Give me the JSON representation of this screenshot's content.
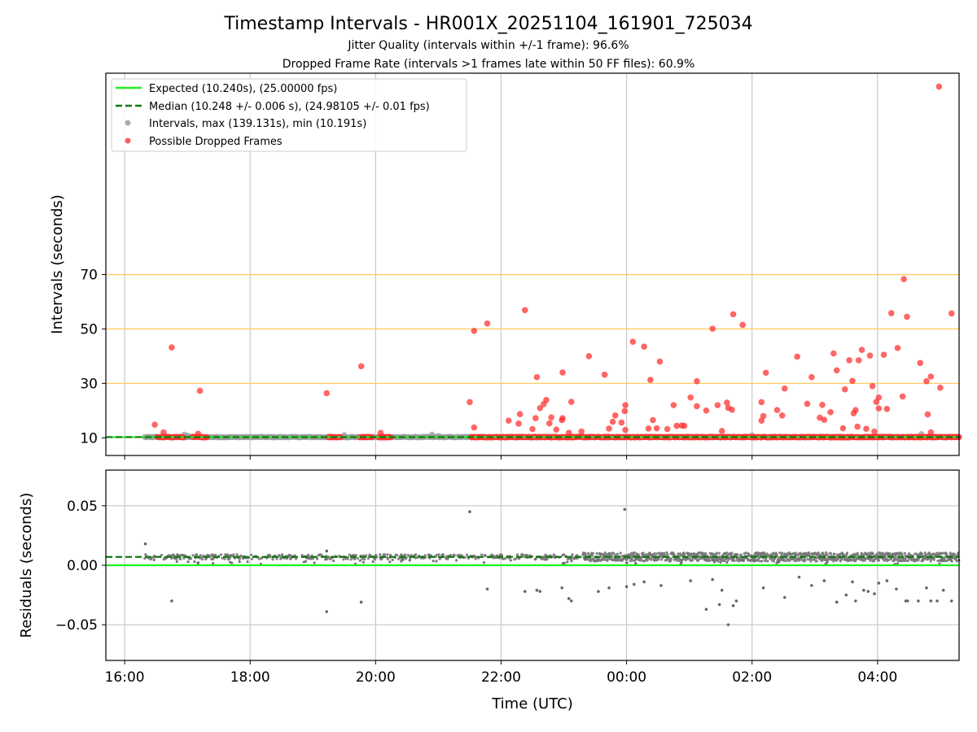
{
  "chart_data": [
    {
      "type": "scatter",
      "panel": "intervals",
      "title": "Timestamp Intervals - HR001X_20251104_161901_725034",
      "subtitle_lines": [
        "Jitter Quality (intervals within +/-1 frame): 96.6%",
        "Dropped Frame Rate (intervals >1 frames late within 50 FF files): 60.9%"
      ],
      "xlabel": "",
      "ylabel": "Intervals (seconds)",
      "xlim": [
        15.7,
        29.3
      ],
      "ylim": [
        3.5,
        144.0
      ],
      "yticks": [
        10,
        30,
        50,
        70
      ],
      "ytick_labels": [
        "10",
        "30",
        "50",
        "70"
      ],
      "hlines": [
        30,
        50,
        70
      ],
      "expected_interval": 10.24,
      "median_interval": 10.248,
      "legend": [
        {
          "label": "Expected (10.240s), (25.00000 fps)",
          "style": "line",
          "color": "#22ee22"
        },
        {
          "label": "Median (10.248 +/- 0.006 s), (24.98105 +/- 0.01 fps)",
          "style": "dashed",
          "color": "#117711"
        },
        {
          "label": "Intervals, max (139.131s), min (10.191s)",
          "style": "dot",
          "color": "#999999"
        },
        {
          "label": "Possible Dropped Frames",
          "style": "dot",
          "color": "#ff3333"
        }
      ],
      "legend_position": "top-left",
      "series": [
        {
          "name": "Possible Dropped Frames",
          "color": "#ff3333",
          "points": [
            [
              16.48,
              14.8
            ],
            [
              16.62,
              12.0
            ],
            [
              16.75,
              43.2
            ],
            [
              17.17,
              11.5
            ],
            [
              17.2,
              27.3
            ],
            [
              19.22,
              26.4
            ],
            [
              19.77,
              36.3
            ],
            [
              20.08,
              11.8
            ],
            [
              21.5,
              23.1
            ],
            [
              21.57,
              13.8
            ],
            [
              21.57,
              49.3
            ],
            [
              21.78,
              52.0
            ],
            [
              22.12,
              16.3
            ],
            [
              22.28,
              15.2
            ],
            [
              22.3,
              18.7
            ],
            [
              22.38,
              56.9
            ],
            [
              22.5,
              13.2
            ],
            [
              22.55,
              17.2
            ],
            [
              22.57,
              32.3
            ],
            [
              22.62,
              20.9
            ],
            [
              22.68,
              22.4
            ],
            [
              22.72,
              23.9
            ],
            [
              22.77,
              15.3
            ],
            [
              22.8,
              17.5
            ],
            [
              22.88,
              13.0
            ],
            [
              22.97,
              16.5
            ],
            [
              22.98,
              17.2
            ],
            [
              22.98,
              34.0
            ],
            [
              23.08,
              11.8
            ],
            [
              23.12,
              23.2
            ],
            [
              23.28,
              12.3
            ],
            [
              23.4,
              40.0
            ],
            [
              23.65,
              33.2
            ],
            [
              23.72,
              13.4
            ],
            [
              23.78,
              15.9
            ],
            [
              23.82,
              18.2
            ],
            [
              23.92,
              15.6
            ],
            [
              23.97,
              19.8
            ],
            [
              23.98,
              22.0
            ],
            [
              23.98,
              12.9
            ],
            [
              24.1,
              45.3
            ],
            [
              24.28,
              43.5
            ],
            [
              24.35,
              13.4
            ],
            [
              24.38,
              31.3
            ],
            [
              24.42,
              16.5
            ],
            [
              24.48,
              13.5
            ],
            [
              24.53,
              38.0
            ],
            [
              24.65,
              13.2
            ],
            [
              24.75,
              22.0
            ],
            [
              24.8,
              14.4
            ],
            [
              24.88,
              14.5
            ],
            [
              24.92,
              14.4
            ],
            [
              25.02,
              24.8
            ],
            [
              25.12,
              21.6
            ],
            [
              25.12,
              30.8
            ],
            [
              25.27,
              20.0
            ],
            [
              25.37,
              50.1
            ],
            [
              25.45,
              22.0
            ],
            [
              25.52,
              12.5
            ],
            [
              25.6,
              22.9
            ],
            [
              25.62,
              21.0
            ],
            [
              25.68,
              20.3
            ],
            [
              25.7,
              55.4
            ],
            [
              25.85,
              51.5
            ],
            [
              26.15,
              23.1
            ],
            [
              26.15,
              16.3
            ],
            [
              26.18,
              18.0
            ],
            [
              26.22,
              33.9
            ],
            [
              26.4,
              20.2
            ],
            [
              26.48,
              18.2
            ],
            [
              26.52,
              28.1
            ],
            [
              26.72,
              39.8
            ],
            [
              26.88,
              22.5
            ],
            [
              26.95,
              32.3
            ],
            [
              27.08,
              17.4
            ],
            [
              27.12,
              22.1
            ],
            [
              27.15,
              16.6
            ],
            [
              27.25,
              19.4
            ],
            [
              27.3,
              41.0
            ],
            [
              27.35,
              34.8
            ],
            [
              27.45,
              13.5
            ],
            [
              27.48,
              27.8
            ],
            [
              27.55,
              38.5
            ],
            [
              27.6,
              30.9
            ],
            [
              27.62,
              19.0
            ],
            [
              27.65,
              20.2
            ],
            [
              27.68,
              14.1
            ],
            [
              27.7,
              38.5
            ],
            [
              27.75,
              42.3
            ],
            [
              27.82,
              13.3
            ],
            [
              27.88,
              40.2
            ],
            [
              27.92,
              29.0
            ],
            [
              27.95,
              12.3
            ],
            [
              27.98,
              23.2
            ],
            [
              28.02,
              20.8
            ],
            [
              28.02,
              24.8
            ],
            [
              28.1,
              40.5
            ],
            [
              28.15,
              20.6
            ],
            [
              28.22,
              55.8
            ],
            [
              28.32,
              43.0
            ],
            [
              28.4,
              25.2
            ],
            [
              28.42,
              68.3
            ],
            [
              28.47,
              54.5
            ],
            [
              28.68,
              37.5
            ],
            [
              28.78,
              30.8
            ],
            [
              28.8,
              18.6
            ],
            [
              28.85,
              32.5
            ],
            [
              28.85,
              12.0
            ],
            [
              29.0,
              28.4
            ],
            [
              28.98,
              139.1
            ],
            [
              29.18,
              55.7
            ]
          ]
        }
      ],
      "dense_bands": [
        {
          "color": "#999999",
          "name": "Intervals",
          "x_start": 16.32,
          "x_end": 29.3,
          "y": 10.24
        },
        {
          "color": "#ff3333",
          "name": "Possible Dropped Frames",
          "ranges": [
            [
              16.52,
              16.95
            ],
            [
              17.08,
              17.32
            ],
            [
              19.25,
              19.45
            ],
            [
              19.75,
              19.95
            ],
            [
              20.05,
              20.25
            ],
            [
              21.52,
              29.3
            ]
          ],
          "y": 10.24
        }
      ]
    },
    {
      "type": "scatter",
      "panel": "residuals",
      "xlabel": "Time (UTC)",
      "ylabel": "Residuals (seconds)",
      "xlim": [
        15.7,
        29.3
      ],
      "ylim": [
        -0.08,
        0.08
      ],
      "yticks": [
        0.05,
        0.0,
        -0.05
      ],
      "ytick_labels": [
        "0.05",
        "0.00",
        "−0.05"
      ],
      "xticks": [
        16,
        18,
        20,
        22,
        24,
        26,
        28
      ],
      "xtick_labels": [
        "16:00",
        "18:00",
        "20:00",
        "22:00",
        "00:00",
        "02:00",
        "04:00"
      ],
      "expected_residual": 0.0,
      "median_residual": 0.007,
      "series": [
        {
          "name": "Residuals",
          "color": "#666666",
          "points": [
            [
              16.33,
              0.018
            ],
            [
              16.75,
              -0.03
            ],
            [
              17.17,
              0.002
            ],
            [
              19.22,
              -0.039
            ],
            [
              19.22,
              0.012
            ],
            [
              19.77,
              -0.031
            ],
            [
              21.5,
              0.045
            ],
            [
              21.78,
              -0.02
            ],
            [
              22.38,
              -0.022
            ],
            [
              22.57,
              -0.021
            ],
            [
              22.62,
              -0.022
            ],
            [
              22.97,
              -0.019
            ],
            [
              23.08,
              -0.028
            ],
            [
              23.12,
              -0.03
            ],
            [
              23.55,
              -0.022
            ],
            [
              23.72,
              -0.019
            ],
            [
              23.97,
              0.047
            ],
            [
              24.0,
              -0.018
            ],
            [
              24.12,
              -0.016
            ],
            [
              24.28,
              -0.014
            ],
            [
              24.55,
              -0.017
            ],
            [
              25.02,
              -0.013
            ],
            [
              25.27,
              -0.037
            ],
            [
              25.37,
              -0.012
            ],
            [
              25.48,
              -0.033
            ],
            [
              25.52,
              -0.021
            ],
            [
              25.62,
              -0.05
            ],
            [
              25.7,
              -0.034
            ],
            [
              25.75,
              -0.03
            ],
            [
              26.18,
              -0.019
            ],
            [
              26.52,
              -0.027
            ],
            [
              26.75,
              -0.01
            ],
            [
              26.95,
              -0.017
            ],
            [
              27.15,
              -0.013
            ],
            [
              27.35,
              -0.031
            ],
            [
              27.5,
              -0.025
            ],
            [
              27.6,
              -0.014
            ],
            [
              27.65,
              -0.03
            ],
            [
              27.78,
              -0.021
            ],
            [
              27.85,
              -0.022
            ],
            [
              27.95,
              -0.024
            ],
            [
              28.02,
              -0.015
            ],
            [
              28.15,
              -0.013
            ],
            [
              28.3,
              -0.02
            ],
            [
              28.45,
              -0.03
            ],
            [
              28.48,
              -0.03
            ],
            [
              28.65,
              -0.03
            ],
            [
              28.78,
              -0.019
            ],
            [
              28.85,
              -0.03
            ],
            [
              28.95,
              -0.03
            ],
            [
              29.05,
              -0.021
            ],
            [
              29.18,
              -0.03
            ]
          ]
        }
      ],
      "dense_band": {
        "color": "#777777",
        "x_start": 16.32,
        "x_end": 29.3,
        "center": 0.007,
        "spread": 0.003
      }
    }
  ],
  "colors": {
    "expected": "#22ee22",
    "median": "#117711",
    "intervals": "#999999",
    "dropped": "#ff3333",
    "residual": "#666666",
    "threshold": "#ffcc66",
    "grid": "#cccccc"
  }
}
